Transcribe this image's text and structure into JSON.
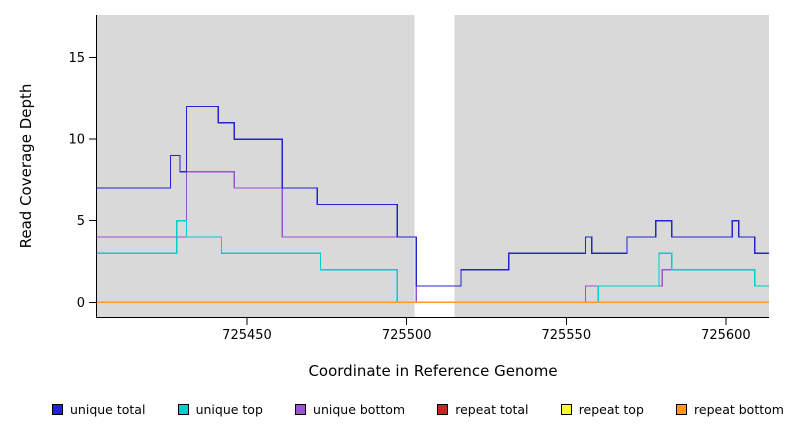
{
  "chart_data": {
    "type": "line",
    "subtype": "step",
    "title": "",
    "xlabel": "Coordinate in Reference Genome",
    "ylabel": "Read Coverage Depth",
    "xlim": [
      725403,
      725613.5
    ],
    "ylim": [
      0,
      17
    ],
    "panel_ylim": [
      -0.9,
      17.6
    ],
    "x_ticks": [
      725450,
      725500,
      725550,
      725600
    ],
    "y_ticks": [
      0,
      5,
      10,
      15
    ],
    "grid": false,
    "legend_position": "bottom",
    "panel_background": "#d9d9d9",
    "plot_background": "#ffffff",
    "gap_region": [
      725502.5,
      725515
    ],
    "panel_regions": [
      [
        725403,
        725502.5
      ],
      [
        725515,
        725613.5
      ]
    ],
    "series": [
      {
        "id": "repeat-total",
        "name": "repeat total",
        "color": "#cc2222",
        "points": [
          [
            725403,
            0
          ]
        ]
      },
      {
        "id": "repeat-top",
        "name": "repeat top",
        "color": "#ffff33",
        "points": [
          [
            725403,
            0
          ]
        ]
      },
      {
        "id": "unique-bottom",
        "name": "unique bottom",
        "color": "#9955cc",
        "points": [
          [
            725403,
            4
          ],
          [
            725431,
            8
          ],
          [
            725446,
            7
          ],
          [
            725461,
            4
          ],
          [
            725503,
            0
          ],
          [
            725556,
            1
          ],
          [
            725580,
            2
          ],
          [
            725609,
            1
          ]
        ]
      },
      {
        "id": "unique-top",
        "name": "unique top",
        "color": "#00cdcd",
        "points": [
          [
            725403,
            3
          ],
          [
            725428,
            5
          ],
          [
            725431,
            4
          ],
          [
            725442,
            3
          ],
          [
            725473,
            2
          ],
          [
            725497,
            0
          ],
          [
            725560,
            1
          ],
          [
            725579,
            3
          ],
          [
            725583,
            2
          ],
          [
            725609,
            1
          ]
        ]
      },
      {
        "id": "unique-total",
        "name": "unique total",
        "color": "#2424cc",
        "points": [
          [
            725403,
            7
          ],
          [
            725426,
            9
          ],
          [
            725429,
            8
          ],
          [
            725431,
            12
          ],
          [
            725441,
            11
          ],
          [
            725446,
            10
          ],
          [
            725461,
            7
          ],
          [
            725472,
            6
          ],
          [
            725497,
            4
          ],
          [
            725503,
            1
          ],
          [
            725517,
            2
          ],
          [
            725532,
            3
          ],
          [
            725556,
            4
          ],
          [
            725558,
            3
          ],
          [
            725569,
            4
          ],
          [
            725578,
            5
          ],
          [
            725583,
            4
          ],
          [
            725602,
            5
          ],
          [
            725604,
            4
          ],
          [
            725609,
            3
          ]
        ]
      },
      {
        "id": "repeat-bottom",
        "name": "repeat bottom",
        "color": "#ff9922",
        "points": [
          [
            725403,
            0
          ]
        ]
      }
    ],
    "legend": [
      {
        "label": "unique total",
        "color": "#2424cc"
      },
      {
        "label": "unique top",
        "color": "#00cdcd"
      },
      {
        "label": "unique bottom",
        "color": "#9955cc"
      },
      {
        "label": "repeat total",
        "color": "#cc2222"
      },
      {
        "label": "repeat top",
        "color": "#ffff33"
      },
      {
        "label": "repeat bottom",
        "color": "#ff9922"
      }
    ]
  }
}
